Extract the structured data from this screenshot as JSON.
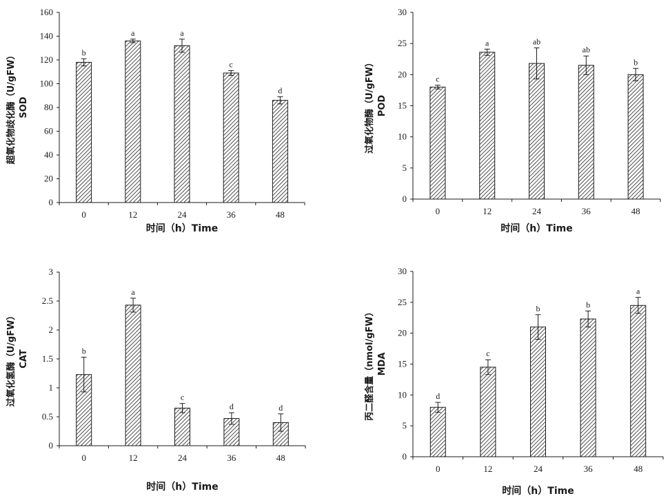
{
  "chart_data": [
    {
      "type": "bar",
      "categories": [
        "0",
        "12",
        "24",
        "36",
        "48"
      ],
      "values": [
        118,
        136,
        132,
        109,
        86
      ],
      "errors": [
        3,
        1.5,
        5.5,
        2,
        3
      ],
      "significance": [
        "b",
        "a",
        "a",
        "c",
        "d"
      ],
      "ylim": [
        0,
        160
      ],
      "yticks": [
        "0",
        "20",
        "40",
        "60",
        "80",
        "100",
        "120",
        "140",
        "160"
      ],
      "xlabel": "时间（h）Time",
      "ylabel_line1": "超氧化物歧化酶（U/gFW）",
      "ylabel_line2": "SOD"
    },
    {
      "type": "bar",
      "categories": [
        "0",
        "12",
        "24",
        "36",
        "48"
      ],
      "values": [
        18,
        23.6,
        21.8,
        21.5,
        20
      ],
      "errors": [
        0.3,
        0.5,
        2.5,
        1.5,
        1
      ],
      "significance": [
        "c",
        "a",
        "ab",
        "ab",
        "b"
      ],
      "ylim": [
        0,
        30
      ],
      "yticks": [
        "0",
        "5",
        "10",
        "15",
        "20",
        "25",
        "30"
      ],
      "xlabel": "时间（h）Time",
      "ylabel_line1": "过氧化物酶（U/gFW）",
      "ylabel_line2": "POD"
    },
    {
      "type": "bar",
      "categories": [
        "0",
        "12",
        "24",
        "36",
        "48"
      ],
      "values": [
        1.23,
        2.43,
        0.65,
        0.47,
        0.4
      ],
      "errors": [
        0.3,
        0.12,
        0.08,
        0.1,
        0.15
      ],
      "significance": [
        "b",
        "a",
        "c",
        "d",
        "d"
      ],
      "ylim": [
        0,
        3
      ],
      "yticks": [
        "0",
        "0.5",
        "1",
        "1.5",
        "2",
        "2.5",
        "3"
      ],
      "xlabel": "时间（h）Time",
      "ylabel_line1": "过氧化氢酶（U/gFW）",
      "ylabel_line2": "CAT"
    },
    {
      "type": "bar",
      "categories": [
        "0",
        "12",
        "24",
        "36",
        "48"
      ],
      "values": [
        8,
        14.5,
        21,
        22.3,
        24.5
      ],
      "errors": [
        0.8,
        1.2,
        2,
        1.3,
        1.3
      ],
      "significance": [
        "d",
        "c",
        "b",
        "b",
        "a"
      ],
      "ylim": [
        0,
        30
      ],
      "yticks": [
        "0",
        "5",
        "10",
        "15",
        "20",
        "25",
        "30"
      ],
      "xlabel": "时间（h）Time",
      "ylabel_line1": "丙二醛含量（nmol/gFW）",
      "ylabel_line2": "MDA"
    }
  ]
}
